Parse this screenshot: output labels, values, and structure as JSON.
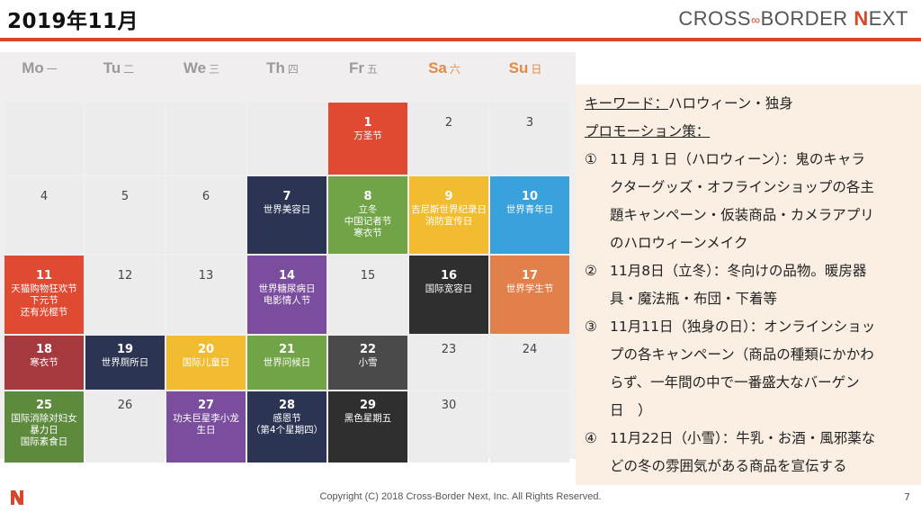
{
  "title": "2019年11月",
  "brand": {
    "part1": "CROSS",
    "part2": "BORDER",
    "n": "N",
    "part3": "EXT"
  },
  "weekdays": [
    {
      "en": "Mo",
      "cn": "一"
    },
    {
      "en": "Tu",
      "cn": "二"
    },
    {
      "en": "We",
      "cn": "三"
    },
    {
      "en": "Th",
      "cn": "四"
    },
    {
      "en": "Fr",
      "cn": "五"
    },
    {
      "en": "Sa",
      "cn": "六"
    },
    {
      "en": "Su",
      "cn": "日"
    }
  ],
  "calendar": {
    "rows": [
      [
        {
          "day": "",
          "events": [],
          "color": ""
        },
        {
          "day": "",
          "events": [],
          "color": ""
        },
        {
          "day": "",
          "events": [],
          "color": ""
        },
        {
          "day": "",
          "events": [],
          "color": ""
        },
        {
          "day": "1",
          "events": [
            "万圣节"
          ],
          "color": "red"
        },
        {
          "day": "2",
          "events": [],
          "color": ""
        },
        {
          "day": "3",
          "events": [],
          "color": ""
        }
      ],
      [
        {
          "day": "4",
          "events": [],
          "color": ""
        },
        {
          "day": "5",
          "events": [],
          "color": ""
        },
        {
          "day": "6",
          "events": [],
          "color": ""
        },
        {
          "day": "7",
          "events": [
            "世界美容日"
          ],
          "color": "navy"
        },
        {
          "day": "8",
          "events": [
            "立冬",
            "中国记者节",
            "寒衣节"
          ],
          "color": "green"
        },
        {
          "day": "9",
          "events": [
            "吉尼斯世界纪录日",
            "消防宣传日"
          ],
          "color": "yellow"
        },
        {
          "day": "10",
          "events": [
            "世界青年日"
          ],
          "color": "blue"
        }
      ],
      [
        {
          "day": "11",
          "events": [
            "天猫购物狂欢节",
            "下元节",
            "还有光棍节"
          ],
          "color": "red"
        },
        {
          "day": "12",
          "events": [],
          "color": ""
        },
        {
          "day": "13",
          "events": [],
          "color": ""
        },
        {
          "day": "14",
          "events": [
            "世界糖尿病日",
            "电影情人节"
          ],
          "color": "purple"
        },
        {
          "day": "15",
          "events": [],
          "color": ""
        },
        {
          "day": "16",
          "events": [
            "国际宽容日"
          ],
          "color": "dark"
        },
        {
          "day": "17",
          "events": [
            "世界学生节"
          ],
          "color": "orange"
        }
      ],
      [
        {
          "day": "18",
          "events": [
            "寒衣节"
          ],
          "color": "maroon"
        },
        {
          "day": "19",
          "events": [
            "世界厕所日"
          ],
          "color": "navy"
        },
        {
          "day": "20",
          "events": [
            "国际儿童日"
          ],
          "color": "yellow"
        },
        {
          "day": "21",
          "events": [
            "世界问候日"
          ],
          "color": "green"
        },
        {
          "day": "22",
          "events": [
            "小雪"
          ],
          "color": "darkgray"
        },
        {
          "day": "23",
          "events": [],
          "color": ""
        },
        {
          "day": "24",
          "events": [],
          "color": ""
        }
      ],
      [
        {
          "day": "25",
          "events": [
            "国际消除对妇女",
            "暴力日",
            "国际素食日"
          ],
          "color": "olive"
        },
        {
          "day": "26",
          "events": [],
          "color": ""
        },
        {
          "day": "27",
          "events": [
            "功夫巨星李小龙",
            "生日"
          ],
          "color": "purple"
        },
        {
          "day": "28",
          "events": [
            "感恩节",
            "（第4个星期四）"
          ],
          "color": "navy"
        },
        {
          "day": "29",
          "events": [
            "黑色星期五"
          ],
          "color": "dark"
        },
        {
          "day": "30",
          "events": [],
          "color": ""
        },
        {
          "day": "",
          "events": [],
          "color": ""
        }
      ]
    ]
  },
  "panel": {
    "keyword_label": "キーワード：",
    "keyword_value": "ハロウィーン・独身",
    "promo_label": "プロモーション策：",
    "items": [
      {
        "mark": "①",
        "lines": [
          "11 月 1 日（ハロウィーン）：鬼のキャラ",
          "クターグッズ・オフラインショップの各主",
          "題キャンペーン・仮装商品・カメラアプリ",
          "のハロウィーンメイク"
        ]
      },
      {
        "mark": "②",
        "lines": [
          "11月8日（立冬）：冬向けの品物。暖房器",
          "具・魔法瓶・布団・下着等"
        ]
      },
      {
        "mark": "③",
        "lines": [
          "11月11日（独身の日）：オンラインショッ",
          "プの各キャンペーン（商品の種類にかかわ",
          "らず、一年間の中で一番盛大なバーゲン",
          "日　）"
        ]
      },
      {
        "mark": "④",
        "lines": [
          "11月22日（小雪）：牛乳・お酒・風邪薬な",
          "どの冬の雰囲気がある商品を宣伝する"
        ]
      }
    ]
  },
  "footer": {
    "copyright": "Copyright (C) 2018 Cross-Border Next, Inc. All Rights Reserved.",
    "page": "7"
  },
  "colors": {
    "accent": "#d9472b",
    "red": "#e04a32",
    "navy": "#2b3553",
    "green": "#71a447",
    "yellow": "#f1bc30",
    "blue": "#39a2dc",
    "purple": "#7a4d9e",
    "dark": "#2f2f2f",
    "orange": "#e1804a",
    "maroon": "#a5393d",
    "darkgray": "#4a4a4a",
    "olive": "#5d8a3c",
    "panel_bg": "#fbeee3"
  }
}
